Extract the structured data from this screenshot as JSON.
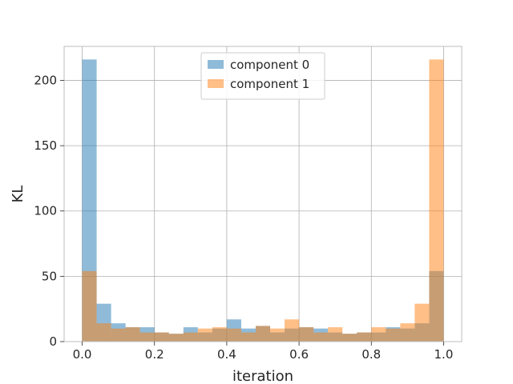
{
  "chart_data": {
    "type": "bar",
    "title": "",
    "xlabel": "iteration",
    "ylabel": "KL",
    "xlim": [
      -0.05,
      1.05
    ],
    "ylim": [
      0,
      226
    ],
    "grid": true,
    "legend_placement": "top-center",
    "bin_width": 0.04,
    "x_ticks": [
      0.0,
      0.2,
      0.4,
      0.6,
      0.8,
      1.0
    ],
    "x_tick_labels": [
      "0.0",
      "0.2",
      "0.4",
      "0.6",
      "0.8",
      "1.0"
    ],
    "y_ticks": [
      0,
      50,
      100,
      150,
      200
    ],
    "y_tick_labels": [
      "0",
      "50",
      "100",
      "150",
      "200"
    ],
    "bin_starts": [
      0.0,
      0.04,
      0.08,
      0.12,
      0.16,
      0.2,
      0.24,
      0.28,
      0.32,
      0.36,
      0.4,
      0.44,
      0.48,
      0.52,
      0.56,
      0.6,
      0.64,
      0.68,
      0.72,
      0.76,
      0.8,
      0.84,
      0.88,
      0.92,
      0.96
    ],
    "series": [
      {
        "name": "component 0",
        "color": "#1f77b4",
        "values": [
          216,
          29,
          14,
          11,
          11,
          7,
          6,
          11,
          7,
          10,
          17,
          10,
          12,
          7,
          10,
          11,
          10,
          7,
          6,
          7,
          7,
          11,
          10,
          14,
          54
        ]
      },
      {
        "name": "component 1",
        "color": "#ff7f0e",
        "values": [
          54,
          14,
          10,
          11,
          7,
          7,
          6,
          7,
          10,
          11,
          10,
          7,
          12,
          10,
          17,
          11,
          7,
          11,
          6,
          7,
          11,
          10,
          14,
          29,
          216
        ]
      }
    ]
  }
}
